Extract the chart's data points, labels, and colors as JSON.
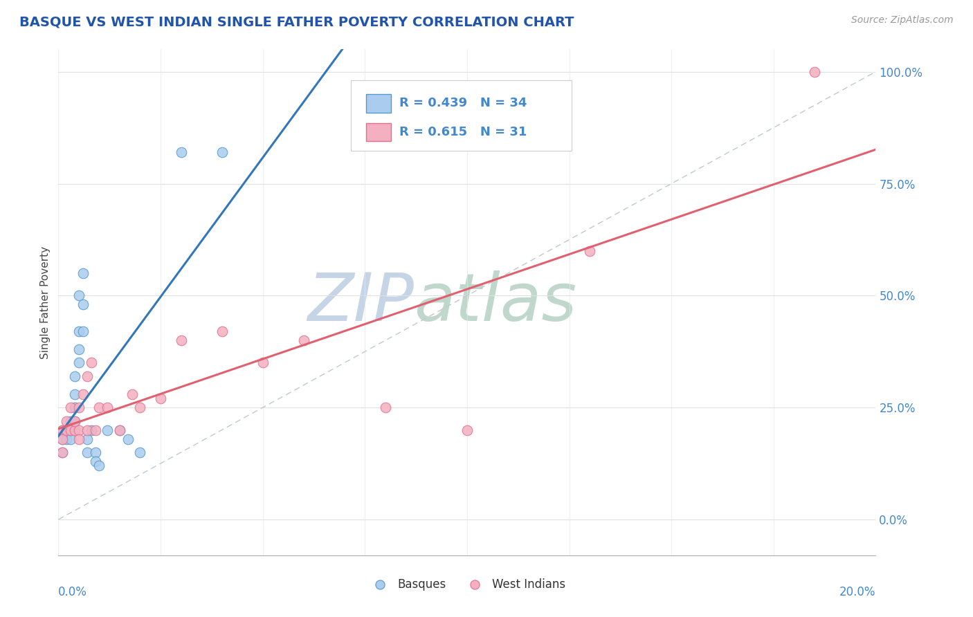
{
  "title": "BASQUE VS WEST INDIAN SINGLE FATHER POVERTY CORRELATION CHART",
  "source": "Source: ZipAtlas.com",
  "ylabel": "Single Father Poverty",
  "ytick_labels": [
    "0.0%",
    "25.0%",
    "50.0%",
    "75.0%",
    "100.0%"
  ],
  "ytick_vals": [
    0.0,
    0.25,
    0.5,
    0.75,
    1.0
  ],
  "xtick_left_label": "0.0%",
  "xtick_right_label": "20.0%",
  "basque_R": "0.439",
  "basque_N": "34",
  "westindian_R": "0.615",
  "westindian_N": "31",
  "basque_face_color": "#aaccee",
  "basque_edge_color": "#5599cc",
  "westindian_face_color": "#f4b0c0",
  "westindian_edge_color": "#e07090",
  "basque_line_color": "#3377bb",
  "westindian_line_color": "#e06070",
  "diag_color": "#c0c8d0",
  "watermark_zip_color": "#c5d5e5",
  "watermark_atlas_color": "#c0d8cc",
  "title_color": "#2255aa",
  "label_color": "#4488cc",
  "basque_x": [
    0.001,
    0.001,
    0.001,
    0.002,
    0.002,
    0.002,
    0.002,
    0.003,
    0.003,
    0.003,
    0.003,
    0.004,
    0.004,
    0.004,
    0.004,
    0.005,
    0.005,
    0.005,
    0.005,
    0.006,
    0.006,
    0.006,
    0.007,
    0.007,
    0.008,
    0.009,
    0.009,
    0.01,
    0.012,
    0.015,
    0.017,
    0.02,
    0.03,
    0.04
  ],
  "basque_y": [
    0.2,
    0.18,
    0.15,
    0.2,
    0.2,
    0.2,
    0.18,
    0.22,
    0.2,
    0.18,
    0.2,
    0.25,
    0.22,
    0.28,
    0.32,
    0.35,
    0.38,
    0.42,
    0.5,
    0.42,
    0.48,
    0.55,
    0.18,
    0.15,
    0.2,
    0.15,
    0.13,
    0.12,
    0.2,
    0.2,
    0.18,
    0.15,
    0.82,
    0.82
  ],
  "westindian_x": [
    0.001,
    0.001,
    0.001,
    0.002,
    0.002,
    0.003,
    0.003,
    0.004,
    0.004,
    0.005,
    0.005,
    0.005,
    0.006,
    0.007,
    0.007,
    0.008,
    0.009,
    0.01,
    0.012,
    0.015,
    0.018,
    0.02,
    0.025,
    0.03,
    0.04,
    0.05,
    0.06,
    0.08,
    0.1,
    0.13,
    0.185
  ],
  "westindian_y": [
    0.2,
    0.18,
    0.15,
    0.22,
    0.2,
    0.25,
    0.2,
    0.2,
    0.22,
    0.25,
    0.2,
    0.18,
    0.28,
    0.32,
    0.2,
    0.35,
    0.2,
    0.25,
    0.25,
    0.2,
    0.28,
    0.25,
    0.27,
    0.4,
    0.42,
    0.35,
    0.4,
    0.25,
    0.2,
    0.6,
    1.0
  ],
  "xlim": [
    0.0,
    0.2
  ],
  "ylim": [
    -0.08,
    1.05
  ]
}
